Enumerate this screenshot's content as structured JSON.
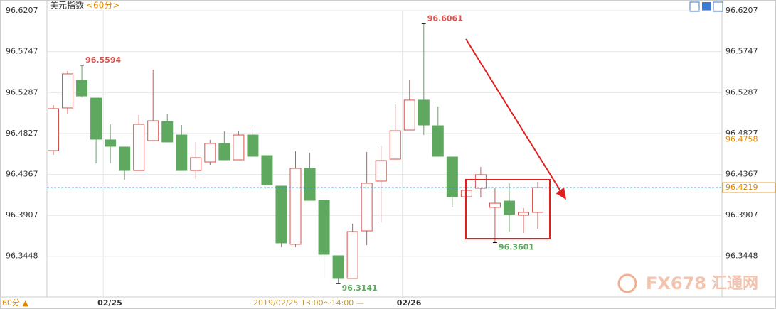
{
  "header": {
    "title": "美元指数",
    "period": "<60分>"
  },
  "footer": {
    "period_selector": "60分 ▲",
    "tooltip": "2019/02/25 13:00～14:00 —"
  },
  "watermark": {
    "brand": "FX678",
    "name": "汇通网"
  },
  "chart_data": {
    "type": "candlestick",
    "categories": [
      null,
      null,
      null,
      null,
      "02/25",
      null,
      null,
      null,
      null,
      null,
      null,
      null,
      null,
      null,
      null,
      null,
      null,
      null,
      null,
      null,
      null,
      null,
      null,
      null,
      null,
      "02/26",
      null,
      null,
      null,
      null,
      null,
      null,
      null,
      null,
      null
    ],
    "open": [
      96.4635,
      96.5114,
      96.5425,
      96.5225,
      96.4755,
      96.4675,
      96.4411,
      96.4747,
      96.4962,
      96.481,
      96.4411,
      96.4507,
      96.4715,
      96.4531,
      96.481,
      96.4579,
      96.4236,
      96.3582,
      96.4435,
      96.4076,
      96.3454,
      96.3199,
      96.3733,
      96.4292,
      96.4539,
      96.4866,
      96.5202,
      96.4914,
      96.4563,
      96.4116,
      96.4212,
      96.3997,
      96.4068,
      96.3909,
      96.3941
    ],
    "high": [
      96.5146,
      96.5529,
      96.5594,
      96.5225,
      96.493,
      96.4675,
      96.5034,
      96.5545,
      96.505,
      96.4922,
      96.4731,
      96.4755,
      96.485,
      96.485,
      96.4874,
      96.4579,
      96.4236,
      96.4627,
      96.4611,
      96.4076,
      96.3454,
      96.3813,
      96.4619,
      96.4691,
      96.5154,
      96.5433,
      96.6061,
      96.513,
      96.4563,
      96.43,
      96.4451,
      96.4212,
      96.4268,
      96.3989,
      96.4284
    ],
    "low": [
      96.4587,
      96.505,
      96.5233,
      96.4491,
      96.4491,
      96.4308,
      96.4411,
      96.4747,
      96.4731,
      96.4411,
      96.4316,
      96.4475,
      96.4531,
      96.4531,
      96.4571,
      96.4212,
      96.355,
      96.355,
      96.4076,
      96.3199,
      96.3141,
      96.3199,
      96.3574,
      96.3829,
      96.4539,
      96.4866,
      96.481,
      96.4571,
      96.3997,
      96.4108,
      96.4108,
      96.3601,
      96.3725,
      96.3709,
      96.3757
    ],
    "close": [
      96.5106,
      96.5497,
      96.5249,
      96.4763,
      96.4683,
      96.4411,
      96.493,
      96.497,
      96.4731,
      96.4411,
      96.4555,
      96.4715,
      96.4531,
      96.481,
      96.4571,
      96.4252,
      96.3598,
      96.4435,
      96.4076,
      96.347,
      96.3199,
      96.3725,
      96.4268,
      96.4523,
      96.4858,
      96.5202,
      96.4922,
      96.4571,
      96.4116,
      96.4188,
      96.4364,
      96.4044,
      96.3917,
      96.3941,
      96.4219
    ],
    "up_color": "#d9534f",
    "down_color": "#5fa85f",
    "ylim": [
      96.2991,
      96.6207
    ],
    "yticks": [
      96.3448,
      96.3907,
      96.4367,
      96.4827,
      96.5287,
      96.5747,
      96.6207
    ],
    "reference_value": 96.4758,
    "grid": true
  }
}
